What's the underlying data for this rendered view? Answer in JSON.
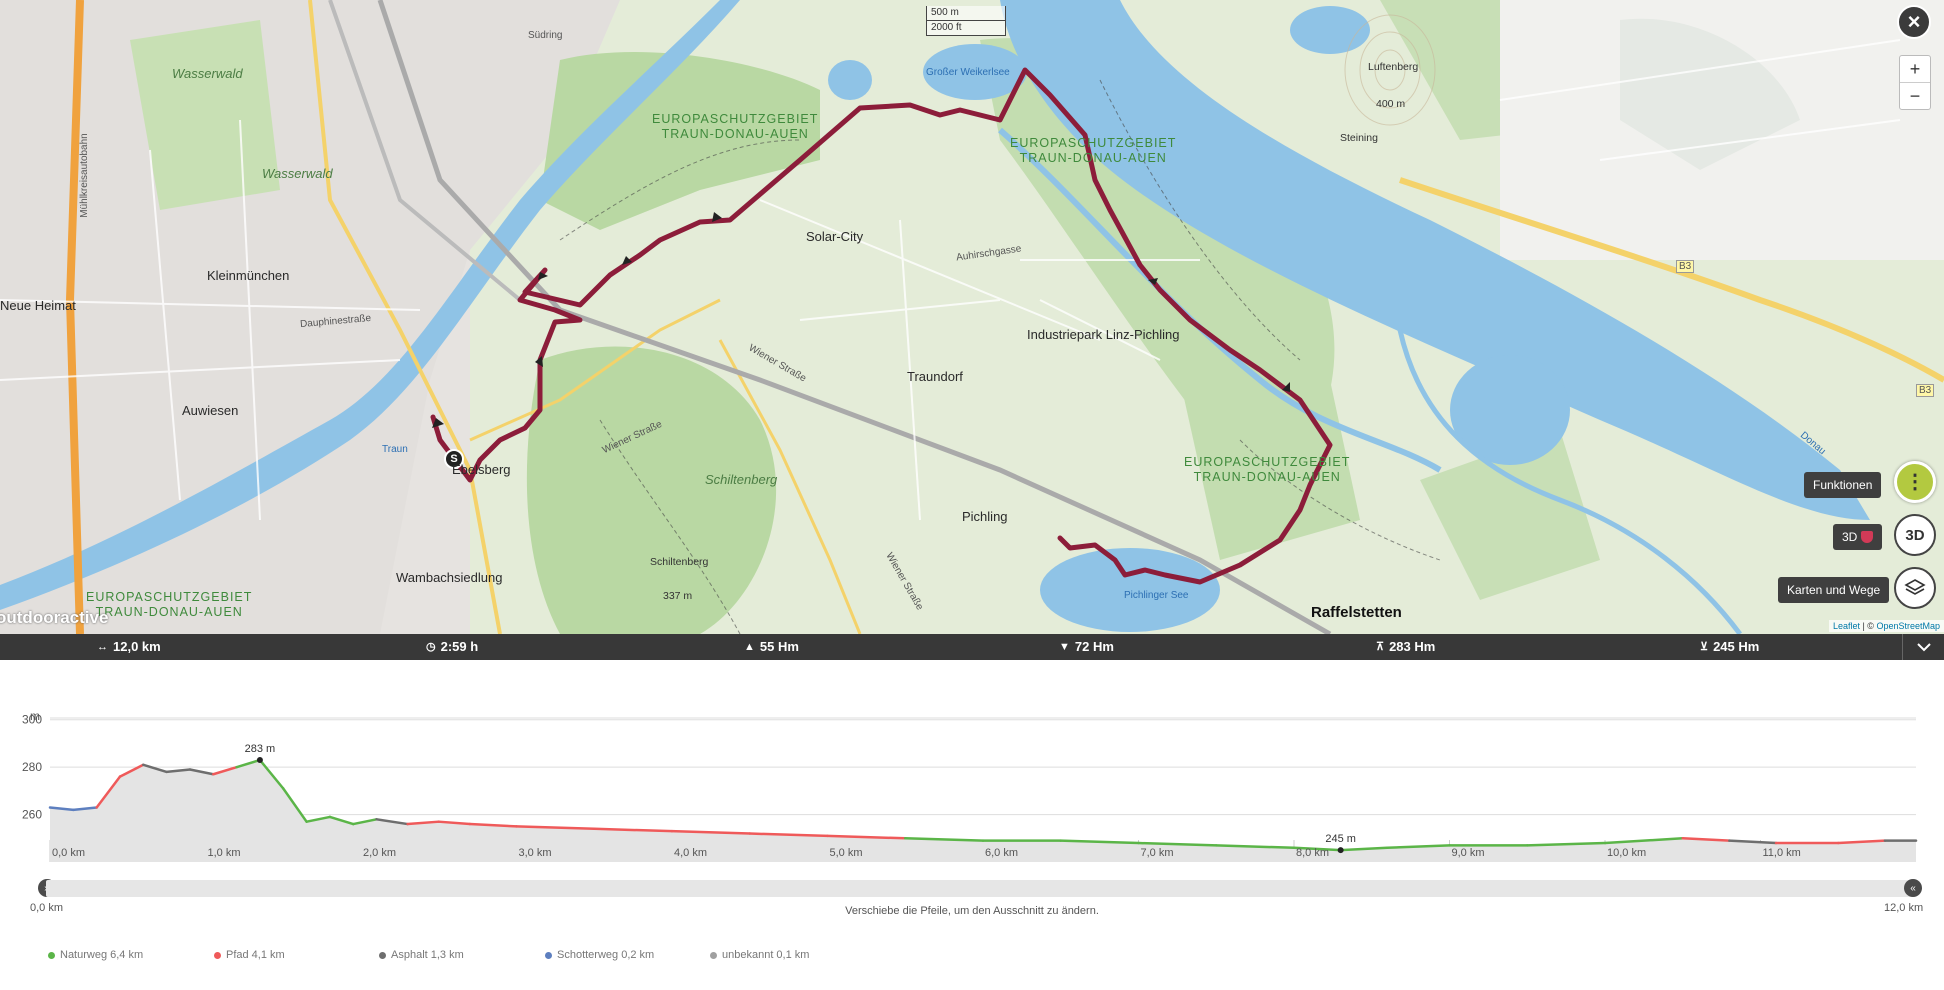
{
  "map": {
    "scale": {
      "metric": "500 m",
      "imperial": "2000 ft"
    },
    "labels": {
      "wasserwald1": "Wasserwald",
      "wasserwald2": "Wasserwald",
      "kleinmuenchen": "Kleinmünchen",
      "neue_heimat": "Neue Heimat",
      "auwiesen": "Auwiesen",
      "ebelsberg": "Ebelsberg",
      "wambachsiedlung": "Wambachsiedlung",
      "schiltenberg": "Schiltenberg",
      "schiltenberg_peak": "Schiltenberg",
      "schiltenberg_elev": "337 m",
      "solar_city": "Solar-City",
      "traundorf": "Traundorf",
      "pichling": "Pichling",
      "industriepark": "Industriepark Linz-Pichling",
      "raffelstetten": "Raffelstetten",
      "luftenberg": "Luftenberg",
      "luftenberg_elev": "400 m",
      "steining": "Steining",
      "eu_area_1": "EUROPASCHUTZGEBIET\nTRAUN-DONAU-AUEN",
      "eu_area_2": "EUROPASCHUTZGEBIET\nTRAUN-DONAU-AUEN",
      "eu_area_3": "EUROPASCHUTZGEBIET\nTRAUN-DONAU-AUEN",
      "eu_area_4": "EUROPASCHUTZGEBIET\nTRAUN-DONAU-AUEN",
      "grosser_weikerlsee": "Großer Weikerlsee",
      "pichlinger_see": "Pichlinger See",
      "donau": "Donau",
      "traun": "Traun",
      "suedring": "Südring",
      "wiener_strasse": "Wiener Straße",
      "wiener_strasse2": "Wiener Straße",
      "wiener_strasse3": "Wiener Straße",
      "muehlkreisautobahn": "Mühlkreisautobahn",
      "dauphinestrasse": "Dauphinestraße",
      "auhirschgasse": "Auhirschgasse",
      "b3_1": "B3",
      "b3_2": "B3",
      "start_marker": "S",
      "watermark": "outdooractive"
    },
    "controls": {
      "close": "×",
      "zoom_in": "+",
      "zoom_out": "−",
      "functions_tooltip": "Funktionen",
      "btn_3d": "3D",
      "tip_3d": "3D",
      "layers_tooltip": "Karten und Wege"
    },
    "attribution": {
      "leaflet": "Leaflet",
      "sep": " | © ",
      "osm": "OpenStreetMap"
    },
    "colors": {
      "route": "#8c1d3a",
      "water": "#8fc3e6",
      "forest": "#b7d7a2"
    }
  },
  "stats": {
    "distance": "12,0 km",
    "duration": "2:59 h",
    "ascent": "55 Hm",
    "descent": "72 Hm",
    "max_alt": "283 Hm",
    "min_alt": "245 Hm"
  },
  "profile": {
    "unit": "m",
    "y_ticks": [
      "300",
      "280",
      "260"
    ],
    "x_ticks": [
      "0,0 km",
      "1,0 km",
      "2,0 km",
      "3,0 km",
      "4,0 km",
      "5,0 km",
      "6,0 km",
      "7,0 km",
      "8,0 km",
      "9,0 km",
      "10,0 km",
      "11,0 km"
    ],
    "max_label": "283 m",
    "min_label": "245 m",
    "slider_start": "0,0 km",
    "slider_end": "12,0 km",
    "slider_hint": "Verschiebe die Pfeile, um den Ausschnitt zu ändern."
  },
  "chart_data": {
    "type": "area",
    "xlabel": "",
    "ylabel": "m",
    "xlim": [
      0,
      12.0
    ],
    "ylim": [
      240,
      310
    ],
    "x": [
      0,
      0.15,
      0.3,
      0.45,
      0.6,
      0.75,
      0.9,
      1.05,
      1.2,
      1.35,
      1.5,
      1.65,
      1.8,
      1.95,
      2.1,
      2.3,
      2.5,
      2.7,
      3.0,
      3.5,
      4.0,
      4.5,
      5.0,
      5.5,
      6.0,
      6.5,
      7.0,
      7.5,
      8.0,
      8.3,
      8.6,
      9.0,
      9.5,
      10.0,
      10.5,
      10.8,
      11.1,
      11.5,
      11.8,
      12.0
    ],
    "y": [
      263,
      262,
      263,
      276,
      281,
      278,
      279,
      277,
      280,
      283,
      271,
      257,
      259,
      256,
      258,
      256,
      257,
      256,
      255,
      254,
      253,
      252,
      251,
      250,
      249,
      249,
      248,
      247,
      246,
      245,
      246,
      247,
      247,
      248,
      250,
      249,
      248,
      248,
      249,
      249
    ],
    "segments": [
      {
        "name": "Naturweg 6,4 km",
        "color": "#5bb548"
      },
      {
        "name": "Pfad 4,1 km",
        "color": "#ef5a5a"
      },
      {
        "name": "Asphalt 1,3 km",
        "color": "#6e6e6e"
      },
      {
        "name": "Schotterweg 0,2 km",
        "color": "#5d7fbf"
      },
      {
        "name": "unbekannt 0,1 km",
        "color": "#a0a0a0"
      }
    ],
    "max": {
      "x": 1.35,
      "y": 283
    },
    "min": {
      "x": 8.3,
      "y": 245
    }
  }
}
